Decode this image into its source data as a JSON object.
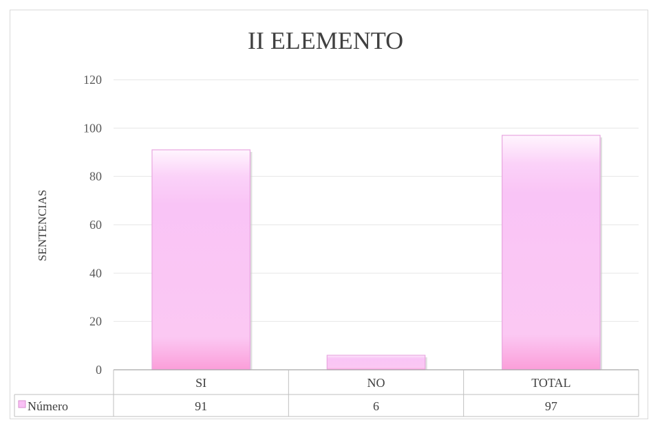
{
  "chart_data": {
    "type": "bar",
    "title": "II ELEMENTO",
    "xlabel": "",
    "ylabel": "SENTENCIAS",
    "categories": [
      "SI",
      "NO",
      "TOTAL"
    ],
    "series": [
      {
        "name": "Número",
        "values": [
          91,
          6,
          97
        ],
        "color": "#f9c0f5"
      }
    ],
    "ylim": [
      0,
      120
    ],
    "yticks": [
      0,
      20,
      40,
      60,
      80,
      100,
      120
    ],
    "grid": true,
    "legend": "data-table"
  }
}
